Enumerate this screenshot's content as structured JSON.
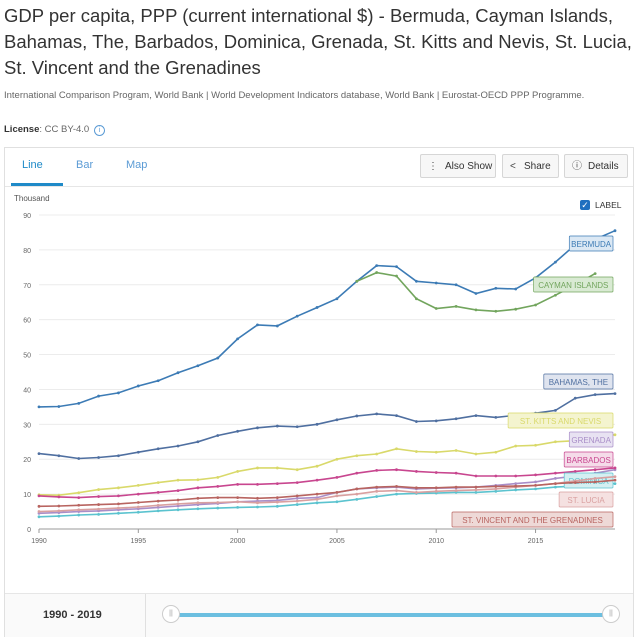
{
  "header": {
    "title": "GDP per capita, PPP (current international $) - Bermuda, Cayman Islands, Bahamas, The, Barbados, Dominica, Grenada, St. Kitts and Nevis, St. Lucia, St. Vincent and the Grenadines",
    "source": "International Comparison Program, World Bank | World Development Indicators database, World Bank | Eurostat-OECD PPP Programme.",
    "license_label": "License",
    "license_value": ": CC BY-4.0"
  },
  "tabs": [
    {
      "label": "Line"
    },
    {
      "label": "Bar"
    },
    {
      "label": "Map"
    }
  ],
  "toolbar": {
    "also_show": "Also Show",
    "share": "Share",
    "details": "Details"
  },
  "legend_toggle": {
    "label": "LABEL",
    "checked": true
  },
  "footer": {
    "range": "1990 - 2019"
  },
  "chart_data": {
    "type": "line",
    "ylabel": "Thousand",
    "ylim": [
      0,
      90
    ],
    "yticks": [
      0,
      10,
      20,
      30,
      40,
      50,
      60,
      70,
      80,
      90
    ],
    "xlim": [
      1990,
      2019
    ],
    "xticks": [
      1990,
      1995,
      2000,
      2005,
      2010,
      2015
    ],
    "x": [
      1990,
      1991,
      1992,
      1993,
      1994,
      1995,
      1996,
      1997,
      1998,
      1999,
      2000,
      2001,
      2002,
      2003,
      2004,
      2005,
      2006,
      2007,
      2008,
      2009,
      2010,
      2011,
      2012,
      2013,
      2014,
      2015,
      2016,
      2017,
      2018,
      2019
    ],
    "series": [
      {
        "name": "BERMUDA",
        "color": "#3c7bb5",
        "label_bg": "#dbe8f4",
        "values": [
          35,
          35.1,
          36,
          38.1,
          39,
          41,
          42.5,
          44.8,
          46.8,
          49,
          54.5,
          58.5,
          58.2,
          61,
          63.5,
          66,
          71,
          75.5,
          75.2,
          71,
          70.5,
          70,
          67.5,
          69,
          68.8,
          72,
          76.5,
          81.5,
          83,
          85.5
        ]
      },
      {
        "name": "CAYMAN ISLANDS",
        "color": "#72a55d",
        "label_bg": "#d9ead3",
        "values": [
          null,
          null,
          null,
          null,
          null,
          null,
          null,
          null,
          null,
          null,
          null,
          null,
          null,
          null,
          null,
          null,
          71,
          73.5,
          72.5,
          66,
          63.2,
          63.8,
          62.8,
          62.4,
          63,
          64.2,
          67,
          70,
          73.2,
          null
        ]
      },
      {
        "name": "BAHAMAS, THE",
        "color": "#4f6fa0",
        "label_bg": "#dfe4ef",
        "values": [
          21.6,
          21,
          20.2,
          20.5,
          21,
          22,
          23,
          23.8,
          25,
          26.8,
          28,
          29,
          29.5,
          29.3,
          30,
          31.3,
          32.4,
          33,
          32.5,
          30.8,
          31,
          31.6,
          32.5,
          32,
          32.6,
          33.2,
          34,
          37.5,
          38.5,
          38.8
        ]
      },
      {
        "name": "ST. KITTS AND NEVIS",
        "color": "#d9d96a",
        "label_bg": "#f4f4cf",
        "values": [
          9.8,
          9.7,
          10.4,
          11.3,
          11.8,
          12.5,
          13.3,
          14,
          14.1,
          14.8,
          16.5,
          17.5,
          17.5,
          17,
          18,
          20,
          21,
          21.5,
          23,
          22.2,
          22,
          22.5,
          21.5,
          22,
          23.8,
          24,
          25,
          25.3,
          26.5,
          27
        ]
      },
      {
        "name": "GRENADA",
        "color": "#a98ec8",
        "label_bg": "#e8e2f2",
        "values": [
          4.5,
          4.7,
          5,
          5.2,
          5.5,
          5.8,
          6.2,
          6.6,
          7,
          7.3,
          7.8,
          8,
          8.2,
          8.8,
          9,
          10.5,
          11.5,
          11.8,
          12,
          11.5,
          11.7,
          11.8,
          12,
          12.5,
          13,
          13.5,
          14.5,
          15.2,
          16,
          17
        ]
      },
      {
        "name": "BARBADOS",
        "color": "#c8468f",
        "label_bg": "#f5dbe9",
        "values": [
          9.5,
          9.2,
          9,
          9.3,
          9.5,
          10,
          10.5,
          11,
          11.8,
          12.2,
          12.8,
          12.8,
          13,
          13.3,
          14,
          14.8,
          16,
          16.8,
          17,
          16.5,
          16.2,
          16,
          15.2,
          15.2,
          15.2,
          15.5,
          16,
          16.5,
          17,
          17.5
        ]
      },
      {
        "name": "DOMINICA",
        "color": "#5bc3cf",
        "label_bg": "#d5eff2",
        "values": [
          3.5,
          3.7,
          4,
          4.2,
          4.5,
          4.8,
          5.2,
          5.5,
          5.8,
          6,
          6.2,
          6.3,
          6.5,
          7,
          7.5,
          7.8,
          8.5,
          9.3,
          10,
          10.2,
          10.3,
          10.5,
          10.5,
          10.8,
          11.2,
          11.5,
          12,
          12.3,
          12.5,
          13
        ]
      },
      {
        "name": "ST. LUCIA",
        "color": "#d9a0a0",
        "label_bg": "#f5e1e1",
        "values": [
          5,
          5.2,
          5.5,
          5.7,
          6,
          6.3,
          6.8,
          7.2,
          7.5,
          7.6,
          7.8,
          7.5,
          7.7,
          8,
          8.5,
          9.5,
          10,
          10.8,
          11,
          10.5,
          10.8,
          11,
          11.2,
          11.5,
          12,
          12.5,
          13,
          13.8,
          14.5,
          15
        ]
      },
      {
        "name": "ST. VINCENT AND THE GRENADINES",
        "color": "#b86460",
        "label_bg": "#eed9d7",
        "values": [
          6.5,
          6.6,
          6.8,
          7,
          7.2,
          7.6,
          8,
          8.3,
          8.8,
          9,
          9,
          8.8,
          9,
          9.5,
          10,
          10.5,
          11.5,
          12,
          12.2,
          11.8,
          11.8,
          12,
          12,
          12.2,
          12.3,
          12.5,
          13,
          13.3,
          13.5,
          14
        ]
      }
    ]
  }
}
